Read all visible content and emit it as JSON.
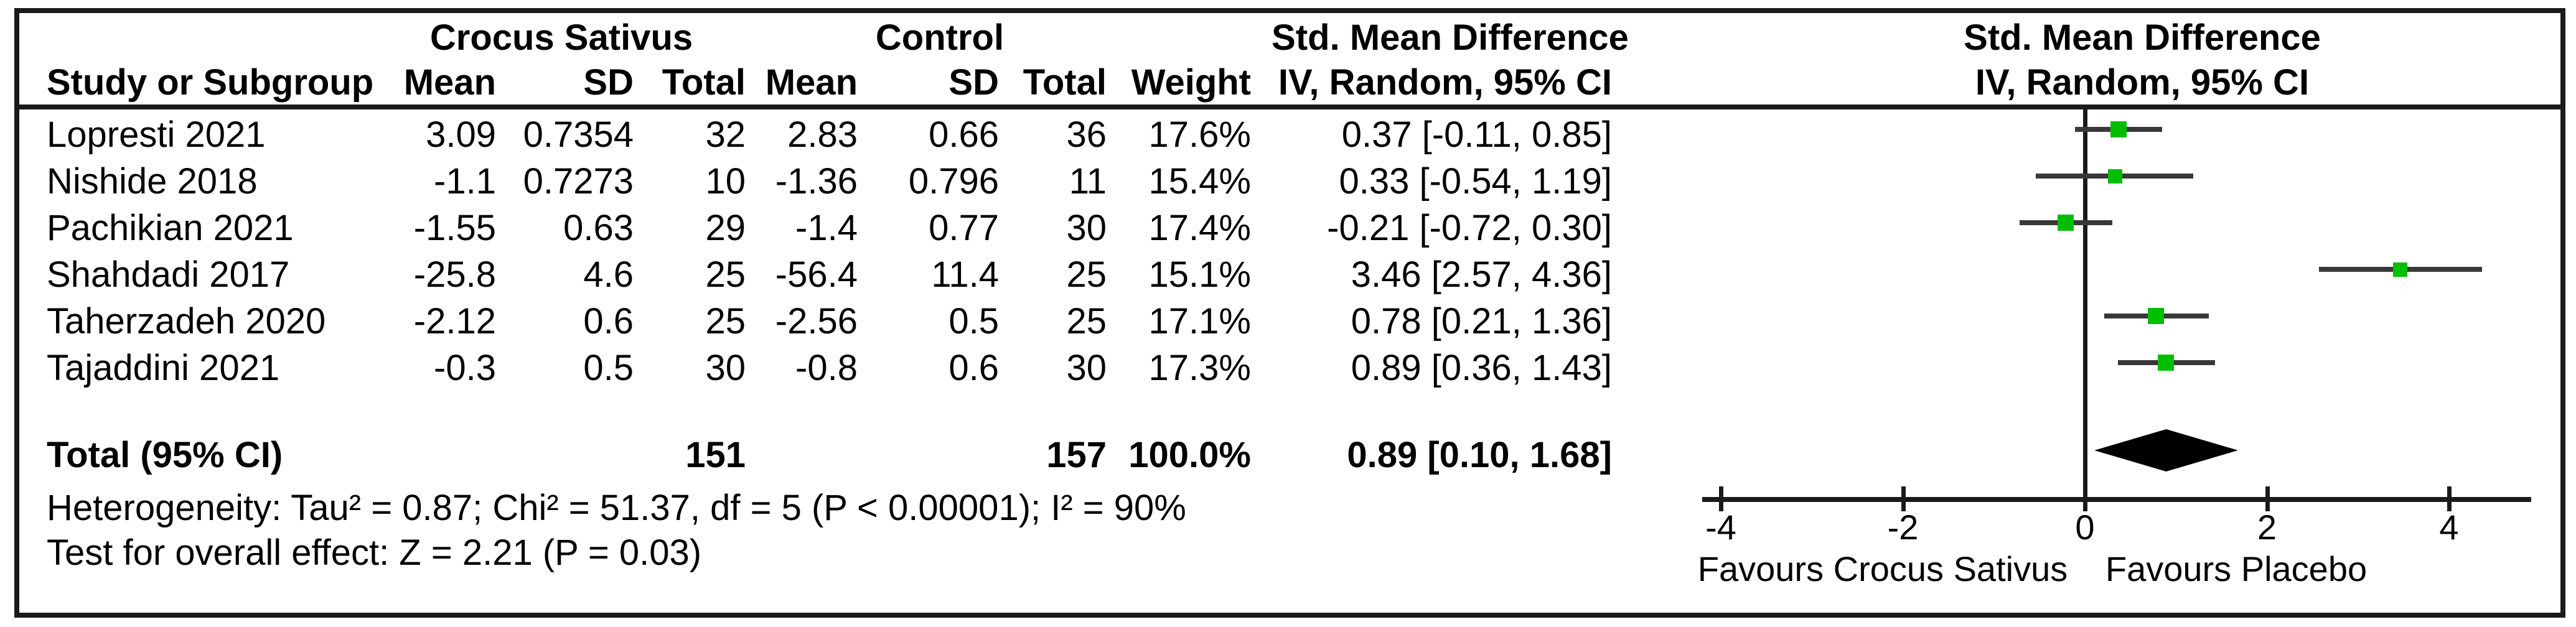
{
  "colors": {
    "marker_green": "#00be00",
    "ci_line": "#383838",
    "frame_black": "#1a1a1a"
  },
  "chart_data": {
    "type": "forest",
    "group1_header": "Crocus Sativus",
    "group2_header": "Control",
    "effect_col_header": "Std. Mean Difference",
    "effect_col_subheader": "IV, Random, 95% CI",
    "plot_header": "Std. Mean Difference",
    "plot_subheader": "IV, Random, 95% CI",
    "columns": {
      "study": "Study or Subgroup",
      "mean1": "Mean",
      "sd1": "SD",
      "total1": "Total",
      "mean2": "Mean",
      "sd2": "SD",
      "total2": "Total",
      "weight": "Weight"
    },
    "studies": [
      {
        "name": "Lopresti 2021",
        "mean1": "3.09",
        "sd1": "0.7354",
        "n1": "32",
        "mean2": "2.83",
        "sd2": "0.66",
        "n2": "36",
        "weight": "17.6%",
        "weight_value": 17.6,
        "ci_text": "0.37 [-0.11, 0.85]",
        "est": 0.37,
        "lo": -0.11,
        "hi": 0.85
      },
      {
        "name": "Nishide 2018",
        "mean1": "-1.1",
        "sd1": "0.7273",
        "n1": "10",
        "mean2": "-1.36",
        "sd2": "0.796",
        "n2": "11",
        "weight": "15.4%",
        "weight_value": 15.4,
        "ci_text": "0.33 [-0.54, 1.19]",
        "est": 0.33,
        "lo": -0.54,
        "hi": 1.19
      },
      {
        "name": "Pachikian 2021",
        "mean1": "-1.55",
        "sd1": "0.63",
        "n1": "29",
        "mean2": "-1.4",
        "sd2": "0.77",
        "n2": "30",
        "weight": "17.4%",
        "weight_value": 17.4,
        "ci_text": "-0.21 [-0.72, 0.30]",
        "est": -0.21,
        "lo": -0.72,
        "hi": 0.3
      },
      {
        "name": "Shahdadi 2017",
        "mean1": "-25.8",
        "sd1": "4.6",
        "n1": "25",
        "mean2": "-56.4",
        "sd2": "11.4",
        "n2": "25",
        "weight": "15.1%",
        "weight_value": 15.1,
        "ci_text": "3.46 [2.57, 4.36]",
        "est": 3.46,
        "lo": 2.57,
        "hi": 4.36
      },
      {
        "name": "Taherzadeh 2020",
        "mean1": "-2.12",
        "sd1": "0.6",
        "n1": "25",
        "mean2": "-2.56",
        "sd2": "0.5",
        "n2": "25",
        "weight": "17.1%",
        "weight_value": 17.1,
        "ci_text": "0.78 [0.21, 1.36]",
        "est": 0.78,
        "lo": 0.21,
        "hi": 1.36
      },
      {
        "name": "Tajaddini 2021",
        "mean1": "-0.3",
        "sd1": "0.5",
        "n1": "30",
        "mean2": "-0.8",
        "sd2": "0.6",
        "n2": "30",
        "weight": "17.3%",
        "weight_value": 17.3,
        "ci_text": "0.89 [0.36, 1.43]",
        "est": 0.89,
        "lo": 0.36,
        "hi": 1.43
      }
    ],
    "total": {
      "label": "Total (95% CI)",
      "n1": "151",
      "n2": "157",
      "weight": "100.0%",
      "ci_text": "0.89 [0.10, 1.68]",
      "est": 0.89,
      "lo": 0.1,
      "hi": 1.68
    },
    "heterogeneity_text": "Heterogeneity: Tau² = 0.87; Chi² = 51.37, df = 5 (P < 0.00001); I² = 90%",
    "overall_effect_text": "Test for overall effect: Z = 2.21 (P = 0.03)",
    "axis": {
      "ticks": [
        -4,
        -2,
        0,
        2,
        4
      ],
      "tick_labels": [
        "-4",
        "-2",
        "0",
        "2",
        "4"
      ],
      "xlim": [
        -4.2,
        4.9
      ]
    },
    "favours_left": "Favours Crocus Sativus",
    "favours_right": "Favours Placebo"
  }
}
